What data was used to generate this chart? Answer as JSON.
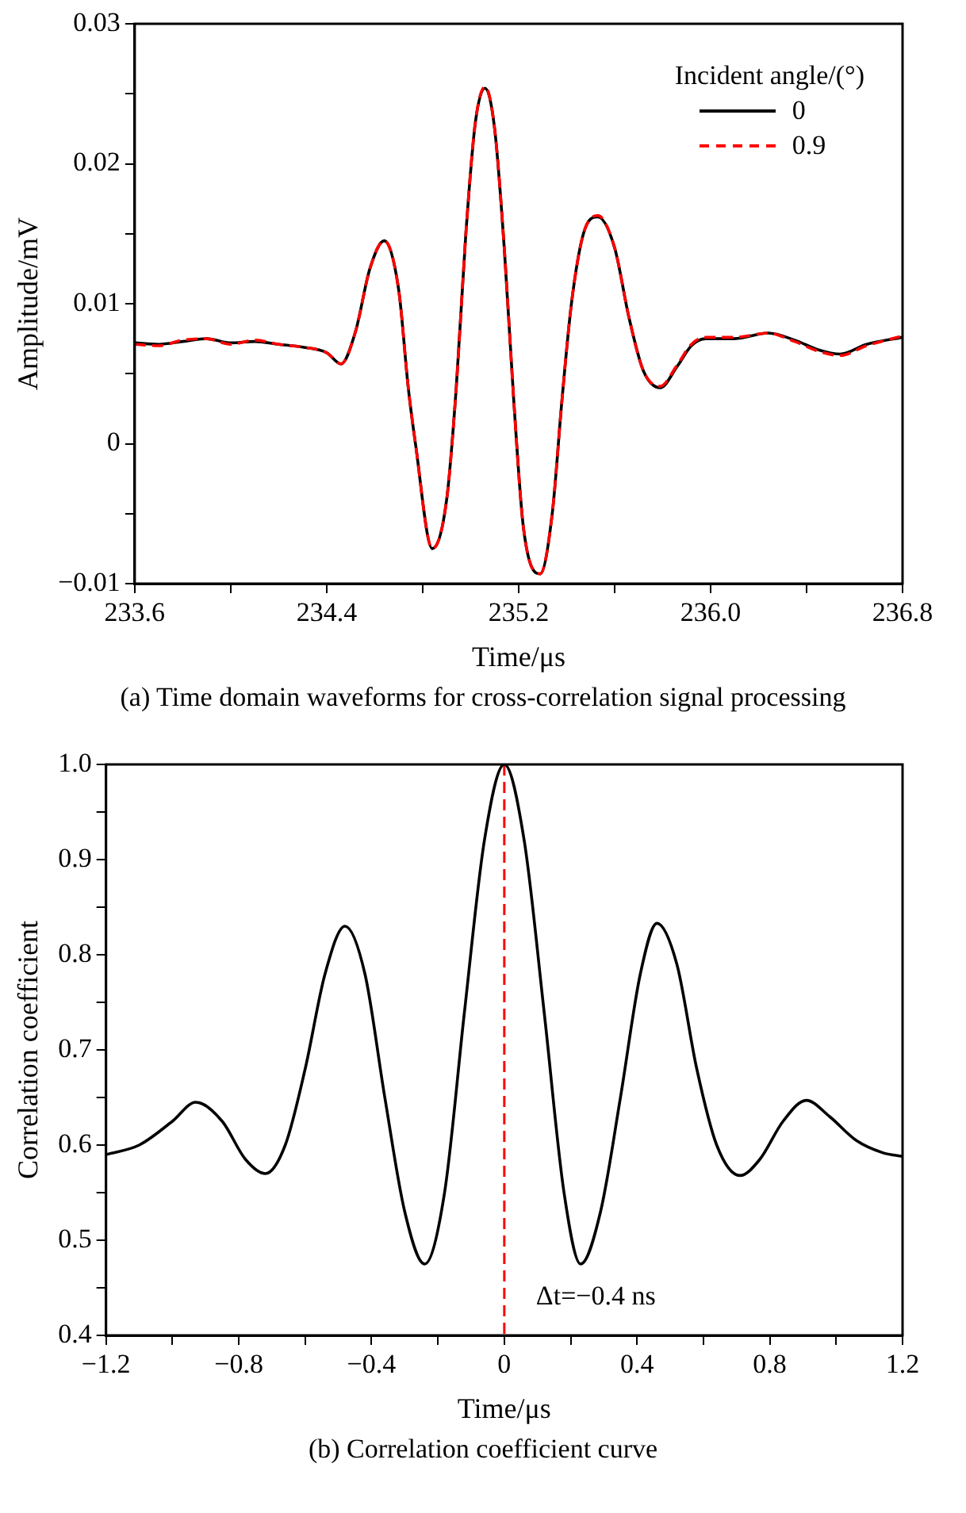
{
  "chart_data": [
    {
      "type": "line",
      "xlabel": "Time/μs",
      "ylabel": "Amplitude/mV",
      "legend_title": "Incident angle/(°)",
      "legend": "top right",
      "grid": false,
      "xlim": [
        233.6,
        236.8
      ],
      "xticks": [
        233.6,
        {
          "value": 234.0,
          "label": null
        },
        234.4,
        {
          "value": 234.8,
          "label": null
        },
        235.2,
        {
          "value": 235.6,
          "label": null
        },
        {
          "value": 236.0,
          "label": "236.0"
        },
        {
          "value": 236.4,
          "label": null
        },
        236.8
      ],
      "ylim": [
        -0.01,
        0.03
      ],
      "yticks": [
        {
          "value": -0.01,
          "label": "−0.01"
        },
        {
          "value": -0.005,
          "label": null
        },
        0,
        {
          "value": 0.005,
          "label": null
        },
        0.01,
        {
          "value": 0.015,
          "label": null
        },
        0.02,
        {
          "value": 0.025,
          "label": null
        },
        0.03
      ],
      "annotations": [
        "(a) Time domain waveforms for cross-correlation signal processing"
      ],
      "x": [
        233.6,
        233.7,
        233.8,
        233.9,
        234.0,
        234.1,
        234.2,
        234.3,
        234.4,
        234.46,
        234.52,
        234.58,
        234.64,
        234.7,
        234.74,
        234.77,
        234.84,
        234.9,
        234.94,
        234.98,
        235.02,
        235.06,
        235.1,
        235.14,
        235.18,
        235.22,
        235.29,
        235.34,
        235.38,
        235.42,
        235.47,
        235.53,
        235.6,
        235.66,
        235.72,
        235.79,
        235.86,
        235.92,
        235.98,
        236.1,
        236.24,
        236.35,
        236.45,
        236.54,
        236.65,
        236.8
      ],
      "series": [
        {
          "name": "0",
          "color": "#000000",
          "line_style": "solid",
          "values": [
            0.0072,
            0.0071,
            0.0073,
            0.0075,
            0.0072,
            0.0073,
            0.0071,
            0.0069,
            0.0065,
            0.0057,
            0.008,
            0.0125,
            0.0145,
            0.011,
            0.004,
            0.0,
            -0.0075,
            -0.004,
            0.004,
            0.015,
            0.023,
            0.0254,
            0.0225,
            0.014,
            0.003,
            -0.006,
            -0.0093,
            -0.005,
            0.003,
            0.01,
            0.015,
            0.0162,
            0.014,
            0.009,
            0.0052,
            0.004,
            0.0055,
            0.007,
            0.0075,
            0.0075,
            0.0079,
            0.0074,
            0.0067,
            0.0064,
            0.0071,
            0.0076
          ]
        },
        {
          "name": "0.9",
          "color": "#ff0000",
          "line_style": "dashed",
          "values": [
            0.0071,
            0.007,
            0.0074,
            0.0075,
            0.0071,
            0.0074,
            0.0071,
            0.0069,
            0.0065,
            0.0057,
            0.008,
            0.0125,
            0.0145,
            0.011,
            0.004,
            0.0,
            -0.0075,
            -0.004,
            0.004,
            0.015,
            0.023,
            0.0255,
            0.0225,
            0.014,
            0.003,
            -0.006,
            -0.0093,
            -0.005,
            0.003,
            0.01,
            0.015,
            0.0163,
            0.014,
            0.009,
            0.0052,
            0.0041,
            0.0056,
            0.0071,
            0.0076,
            0.0076,
            0.0079,
            0.0073,
            0.0066,
            0.0063,
            0.007,
            0.0077
          ]
        }
      ]
    },
    {
      "type": "line",
      "xlabel": "Time/μs",
      "ylabel": "Correlation coefficient",
      "grid": false,
      "legend": false,
      "xlim": [
        -1.2,
        1.2
      ],
      "xticks": [
        {
          "value": -1.2,
          "label": "−1.2"
        },
        {
          "value": -1.0,
          "label": null
        },
        {
          "value": -0.8,
          "label": "−0.8"
        },
        {
          "value": -0.6,
          "label": null
        },
        {
          "value": -0.4,
          "label": "−0.4"
        },
        {
          "value": -0.2,
          "label": null
        },
        0,
        {
          "value": 0.2,
          "label": null
        },
        0.4,
        {
          "value": 0.6,
          "label": null
        },
        0.8,
        {
          "value": 1.0,
          "label": null
        },
        1.2
      ],
      "ylim": [
        0.4,
        1.0
      ],
      "yticks": [
        0.4,
        {
          "value": 0.45,
          "label": null
        },
        0.5,
        {
          "value": 0.55,
          "label": null
        },
        0.6,
        {
          "value": 0.65,
          "label": null
        },
        0.7,
        {
          "value": 0.75,
          "label": null
        },
        0.8,
        {
          "value": 0.85,
          "label": null
        },
        0.9,
        {
          "value": 0.95,
          "label": null
        },
        {
          "value": 1.0,
          "label": "1.0"
        }
      ],
      "ref_lines": [
        {
          "axis": "x",
          "value": 0,
          "color": "#ff0000",
          "line_style": "dashed"
        }
      ],
      "annotations": [
        {
          "text": "Δt=−0.4 ns",
          "x": 0,
          "y": 0.44
        },
        "(b) Correlation coefficient curve"
      ],
      "x": [
        -1.2,
        -1.1,
        -1.0,
        -0.93,
        -0.85,
        -0.78,
        -0.72,
        -0.66,
        -0.6,
        -0.54,
        -0.48,
        -0.42,
        -0.36,
        -0.3,
        -0.24,
        -0.18,
        -0.12,
        -0.06,
        0,
        0.06,
        0.12,
        0.18,
        0.23,
        0.29,
        0.35,
        0.41,
        0.46,
        0.52,
        0.58,
        0.64,
        0.71,
        0.77,
        0.84,
        0.91,
        0.98,
        1.06,
        1.14,
        1.2
      ],
      "series": [
        {
          "color": "#000000",
          "line_style": "solid",
          "values": [
            0.59,
            0.6,
            0.625,
            0.645,
            0.625,
            0.585,
            0.57,
            0.6,
            0.68,
            0.78,
            0.83,
            0.78,
            0.65,
            0.53,
            0.475,
            0.55,
            0.74,
            0.92,
            1.0,
            0.92,
            0.74,
            0.55,
            0.475,
            0.53,
            0.65,
            0.78,
            0.833,
            0.79,
            0.68,
            0.6,
            0.568,
            0.585,
            0.625,
            0.647,
            0.63,
            0.605,
            0.592,
            0.588
          ]
        }
      ]
    }
  ]
}
